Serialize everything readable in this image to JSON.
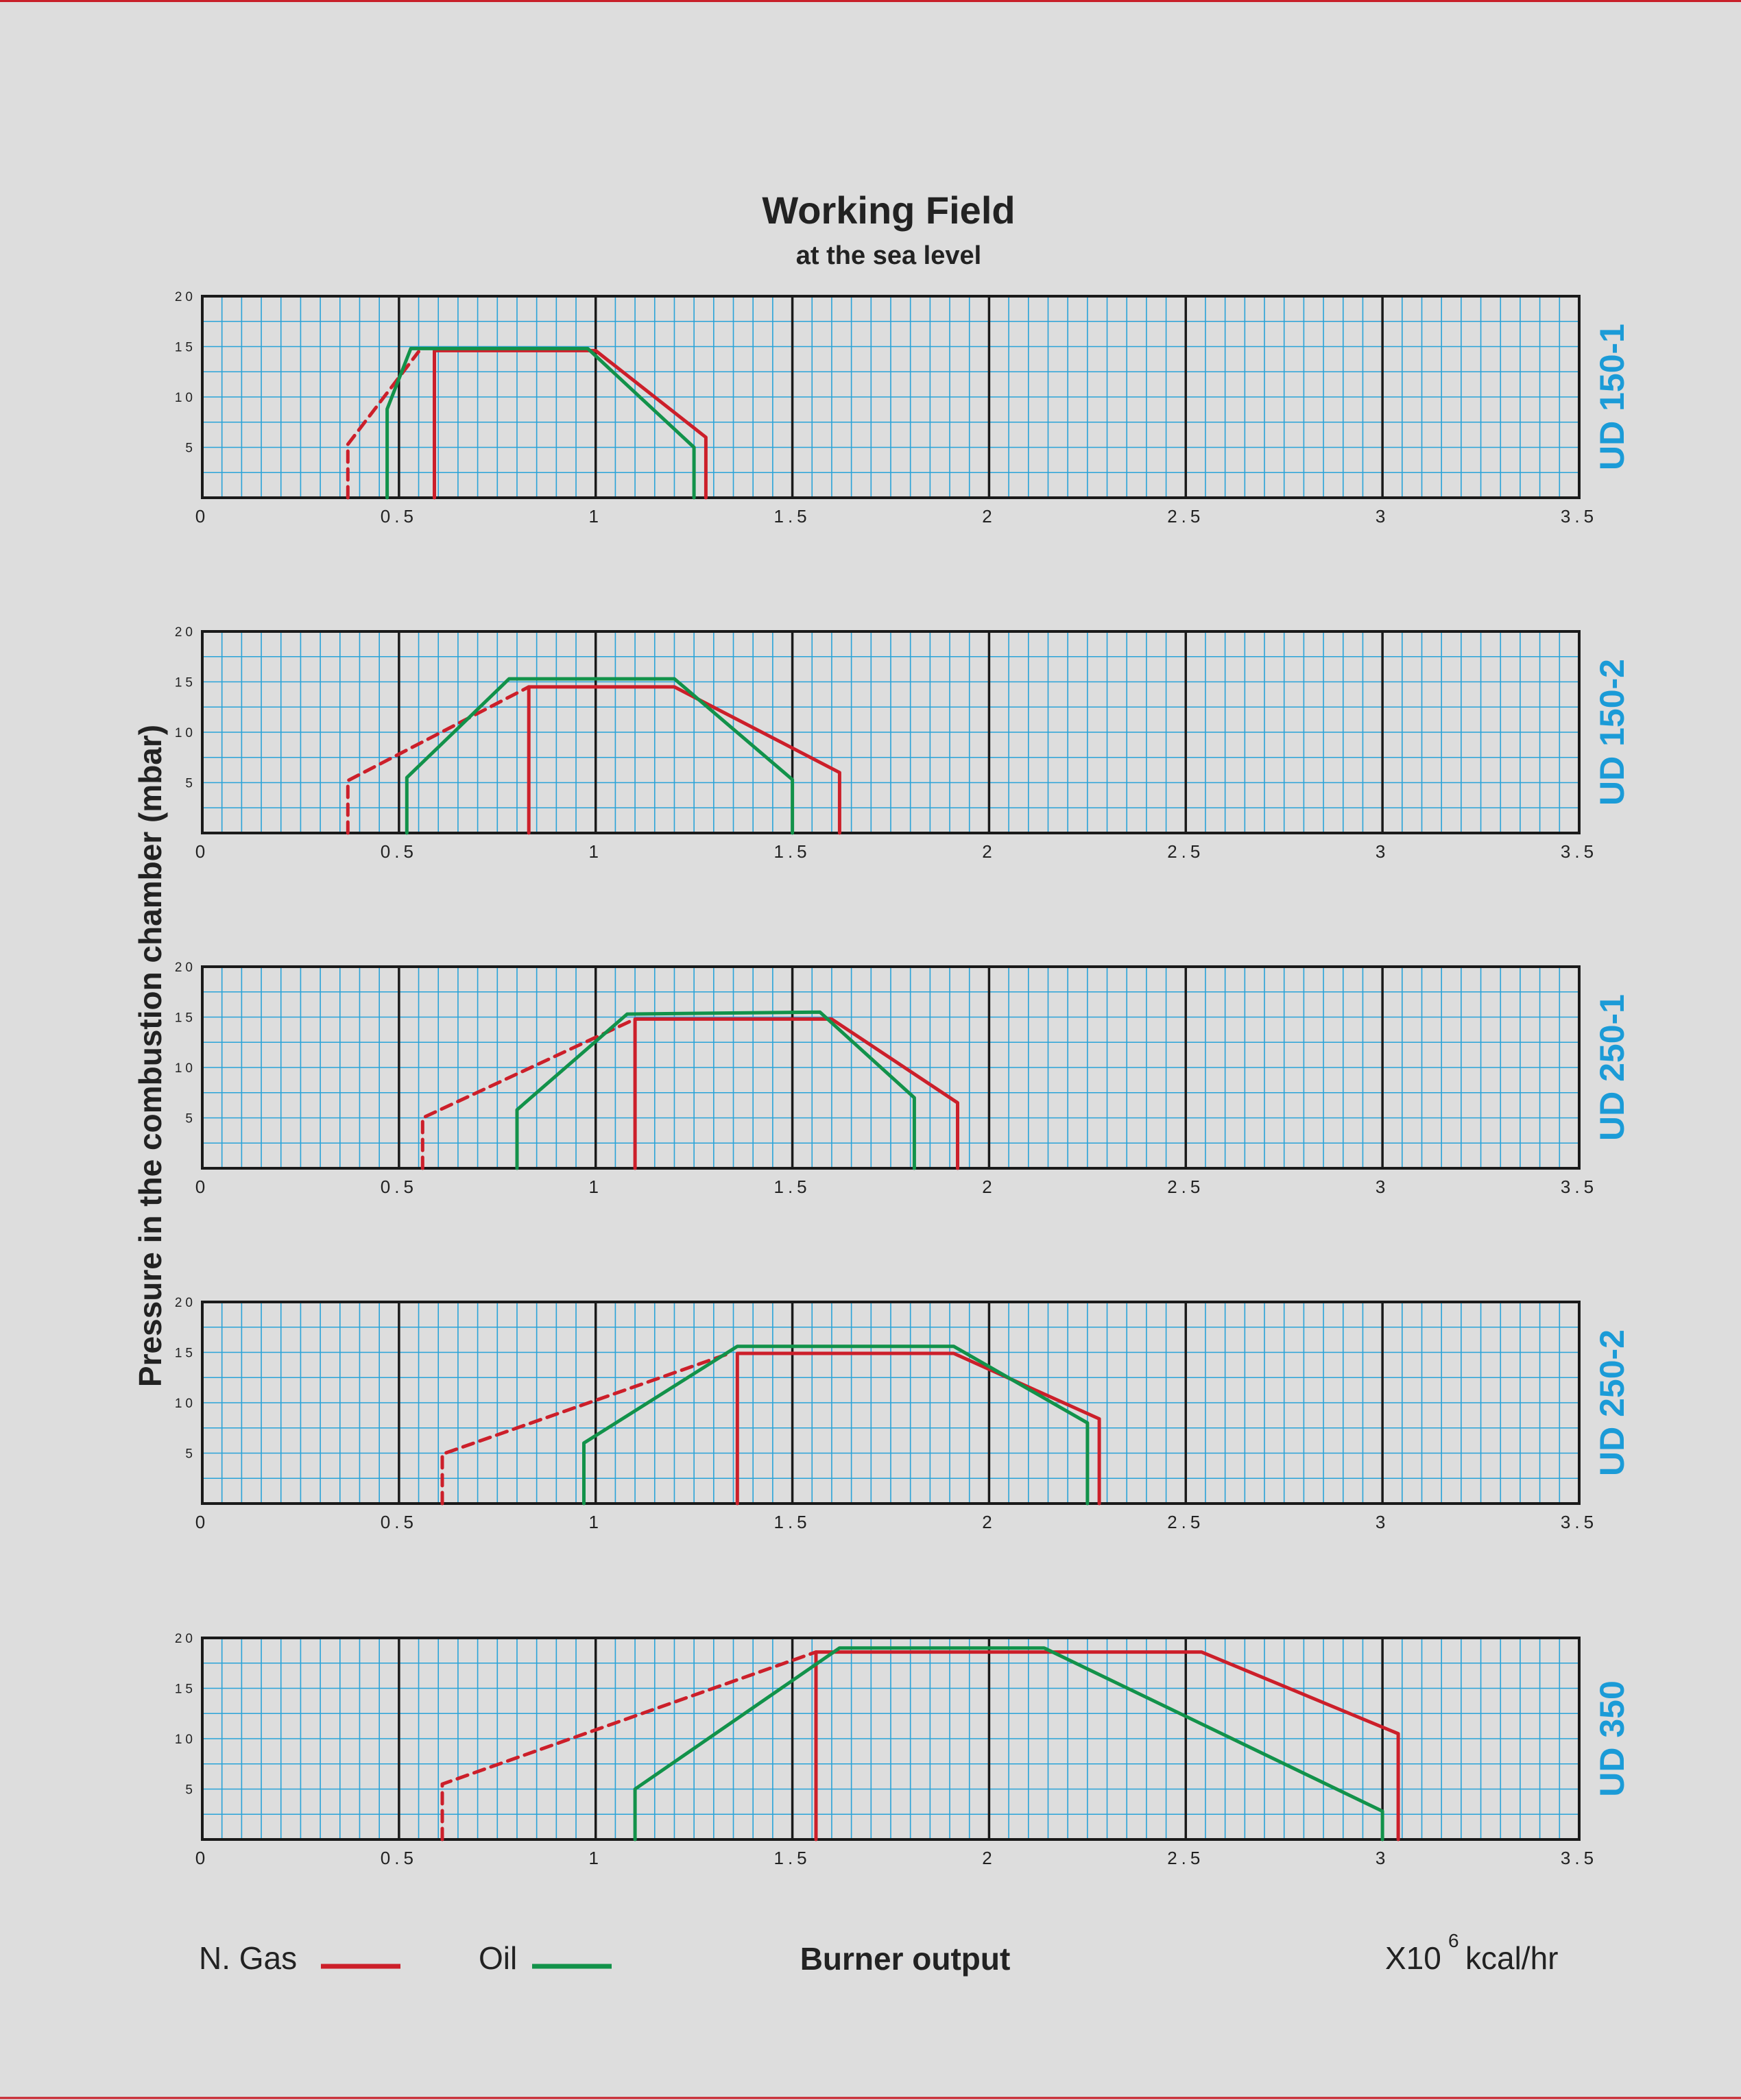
{
  "chart_data": {
    "type": "line",
    "title": "Working Field",
    "subtitle": "at the sea level",
    "ylabel": "Pressure in the combustion chamber (mbar)",
    "xlabel": "Burner output",
    "unit_base": "X10",
    "unit_exp": "6",
    "unit_rest": "kcal/hr",
    "xlim": [
      0,
      3.5
    ],
    "ylim": [
      0,
      20
    ],
    "x_ticks": [
      "0",
      "0.5",
      "1",
      "1.5",
      "2",
      "2.5",
      "3",
      "3.5"
    ],
    "y_ticks": [
      "5",
      "10",
      "15",
      "20"
    ],
    "grid": true,
    "legend": [
      {
        "name": "N. Gas",
        "color": "#cc1f2a"
      },
      {
        "name": "Oil",
        "color": "#12924a"
      }
    ],
    "panels": [
      {
        "model": "UD 150-1",
        "series": [
          {
            "fuel": "gas",
            "style": "dashed",
            "points": [
              [
                0.37,
                0
              ],
              [
                0.37,
                5.3
              ],
              [
                0.55,
                14.5
              ]
            ]
          },
          {
            "fuel": "gas",
            "style": "solid",
            "points": [
              [
                0.59,
                0
              ],
              [
                0.59,
                14.6
              ],
              [
                1.0,
                14.6
              ],
              [
                1.28,
                6.0
              ],
              [
                1.28,
                0
              ]
            ]
          },
          {
            "fuel": "oil",
            "style": "solid",
            "points": [
              [
                0.47,
                0
              ],
              [
                0.47,
                8.8
              ],
              [
                0.53,
                14.8
              ],
              [
                0.98,
                14.8
              ],
              [
                1.25,
                5.0
              ],
              [
                1.25,
                0
              ]
            ]
          }
        ]
      },
      {
        "model": "UD 150-2",
        "series": [
          {
            "fuel": "gas",
            "style": "dashed",
            "points": [
              [
                0.37,
                0
              ],
              [
                0.37,
                5.2
              ],
              [
                0.83,
                14.5
              ]
            ]
          },
          {
            "fuel": "gas",
            "style": "solid",
            "points": [
              [
                0.83,
                0
              ],
              [
                0.83,
                14.5
              ],
              [
                1.2,
                14.5
              ],
              [
                1.62,
                6.0
              ],
              [
                1.62,
                0
              ]
            ]
          },
          {
            "fuel": "oil",
            "style": "solid",
            "points": [
              [
                0.52,
                0
              ],
              [
                0.52,
                5.5
              ],
              [
                0.78,
                15.3
              ],
              [
                1.2,
                15.3
              ],
              [
                1.5,
                5.3
              ],
              [
                1.5,
                0
              ]
            ]
          }
        ]
      },
      {
        "model": "UD 250-1",
        "series": [
          {
            "fuel": "gas",
            "style": "dashed",
            "points": [
              [
                0.56,
                0
              ],
              [
                0.56,
                5.0
              ],
              [
                1.1,
                14.8
              ]
            ]
          },
          {
            "fuel": "gas",
            "style": "solid",
            "points": [
              [
                1.1,
                0
              ],
              [
                1.1,
                14.8
              ],
              [
                1.6,
                14.8
              ],
              [
                1.92,
                6.5
              ],
              [
                1.92,
                0
              ]
            ]
          },
          {
            "fuel": "oil",
            "style": "solid",
            "points": [
              [
                0.8,
                0
              ],
              [
                0.8,
                5.8
              ],
              [
                1.08,
                15.3
              ],
              [
                1.57,
                15.5
              ],
              [
                1.81,
                7.0
              ],
              [
                1.81,
                0
              ]
            ]
          }
        ]
      },
      {
        "model": "UD 250-2",
        "series": [
          {
            "fuel": "gas",
            "style": "dashed",
            "points": [
              [
                0.61,
                0
              ],
              [
                0.61,
                4.9
              ],
              [
                1.34,
                14.9
              ]
            ]
          },
          {
            "fuel": "gas",
            "style": "solid",
            "points": [
              [
                1.36,
                0
              ],
              [
                1.36,
                14.9
              ],
              [
                1.91,
                14.9
              ],
              [
                2.28,
                8.4
              ],
              [
                2.28,
                0
              ]
            ]
          },
          {
            "fuel": "oil",
            "style": "solid",
            "points": [
              [
                0.97,
                0
              ],
              [
                0.97,
                6.0
              ],
              [
                1.36,
                15.6
              ],
              [
                1.91,
                15.6
              ],
              [
                2.25,
                8.0
              ],
              [
                2.25,
                0
              ]
            ]
          }
        ]
      },
      {
        "model": "UD 350",
        "series": [
          {
            "fuel": "gas",
            "style": "dashed",
            "points": [
              [
                0.61,
                0
              ],
              [
                0.61,
                5.5
              ],
              [
                1.56,
                18.6
              ]
            ]
          },
          {
            "fuel": "gas",
            "style": "solid",
            "points": [
              [
                1.56,
                0
              ],
              [
                1.56,
                18.6
              ],
              [
                2.54,
                18.6
              ],
              [
                3.04,
                10.5
              ],
              [
                3.04,
                0
              ]
            ]
          },
          {
            "fuel": "oil",
            "style": "solid",
            "points": [
              [
                1.1,
                0
              ],
              [
                1.1,
                5.0
              ],
              [
                1.62,
                19.0
              ],
              [
                2.14,
                19.0
              ],
              [
                3.0,
                2.8
              ],
              [
                3.0,
                0
              ]
            ]
          }
        ]
      }
    ]
  },
  "colors": {
    "background": "#dddddd",
    "grid_minor": "#2aa3d8",
    "grid_major": "#1a1a1a",
    "gas": "#cc1f2a",
    "oil": "#12924a",
    "model_label": "#1b9bd7",
    "border": "#c8202a"
  }
}
